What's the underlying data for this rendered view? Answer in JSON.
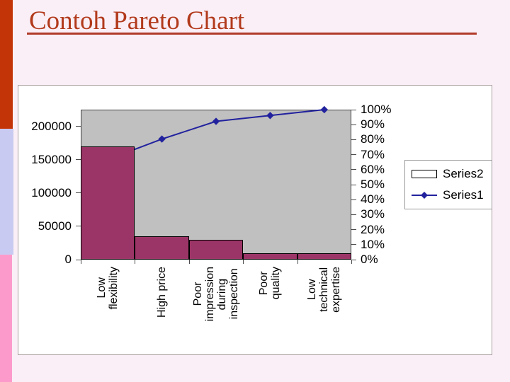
{
  "slide": {
    "title": "Contoh Pareto Chart",
    "background_color": "#faeff7",
    "title_color": "#b23a1c",
    "accent_band_colors": [
      "#c33508",
      "#c9caf1",
      "#fc9bcb"
    ]
  },
  "chart_data": {
    "type": "bar",
    "subtype": "pareto-combo-bar-line",
    "grid": false,
    "plot_bg_color": "#c0c0c0",
    "categories": [
      "Low\nflexibility",
      "High price",
      "Poor\nimpression\nduring\ninspection",
      "Poor\nquality",
      "Low\ntechnical\nexpertise"
    ],
    "series": [
      {
        "name": "Series2",
        "kind": "bar",
        "axis": "left",
        "color": "#9c3567",
        "values": [
          170000,
          35000,
          30000,
          10000,
          10000
        ]
      },
      {
        "name": "Series1",
        "kind": "line-diamond",
        "axis": "right",
        "color": "#22229e",
        "values_pct": [
          66.7,
          80.4,
          92.2,
          96.1,
          100
        ],
        "cumulative_values": [
          170000,
          205000,
          235000,
          245000,
          255000
        ]
      }
    ],
    "left_axis": {
      "tick_labels": [
        "0",
        "50000",
        "100000",
        "150000",
        "200000"
      ],
      "tick_values": [
        0,
        50000,
        100000,
        150000,
        200000
      ],
      "max": 225000
    },
    "right_axis": {
      "tick_labels": [
        "0%",
        "10%",
        "20%",
        "30%",
        "40%",
        "50%",
        "60%",
        "70%",
        "80%",
        "90%",
        "100%"
      ],
      "tick_pcts": [
        0,
        10,
        20,
        30,
        40,
        50,
        60,
        70,
        80,
        90,
        100
      ]
    },
    "legend": {
      "entries": [
        "Series2",
        "Series1"
      ],
      "position": "right"
    }
  }
}
